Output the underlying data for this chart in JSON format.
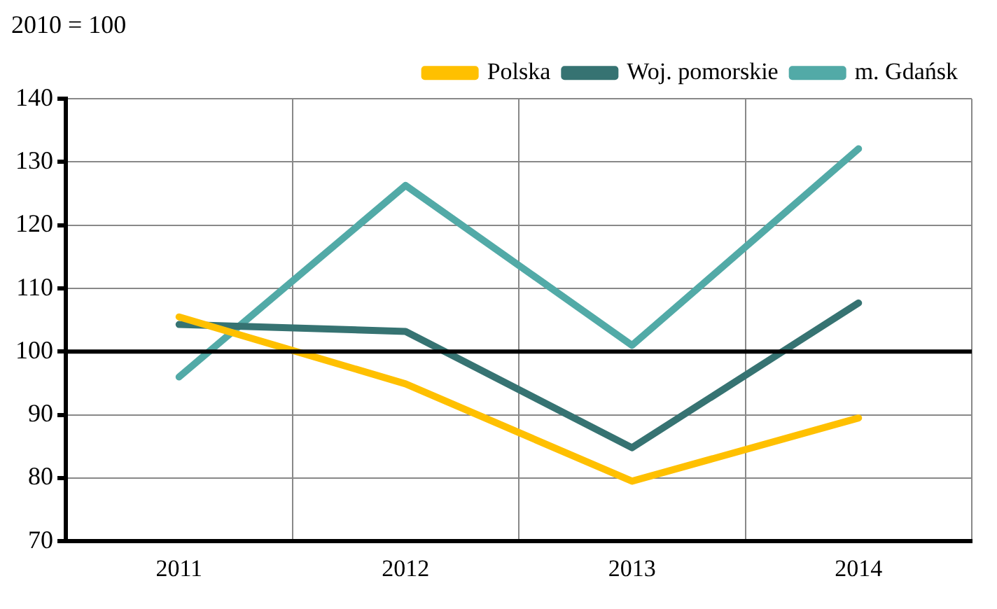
{
  "chart_data": {
    "type": "line",
    "title": "2010 = 100",
    "categories": [
      "2011",
      "2012",
      "2013",
      "2014"
    ],
    "series": [
      {
        "name": "Polska",
        "color": "#ffc000",
        "values": [
          105.5,
          94.9,
          79.5,
          89.5
        ]
      },
      {
        "name": "Woj. pomorskie",
        "color": "#367372",
        "values": [
          104.3,
          103.2,
          84.8,
          107.7
        ]
      },
      {
        "name": "m. Gdańsk",
        "color": "#52aaa7",
        "values": [
          96,
          126.3,
          101,
          132.1
        ]
      }
    ],
    "ylim": [
      70,
      140
    ],
    "yticks": [
      70,
      80,
      90,
      100,
      110,
      120,
      130,
      140
    ],
    "grid": true,
    "legend": "top right",
    "marker": "none",
    "line_style": "solid",
    "ref_lines": [
      {
        "axis": "y",
        "value": 100,
        "color": "#000000"
      }
    ]
  }
}
